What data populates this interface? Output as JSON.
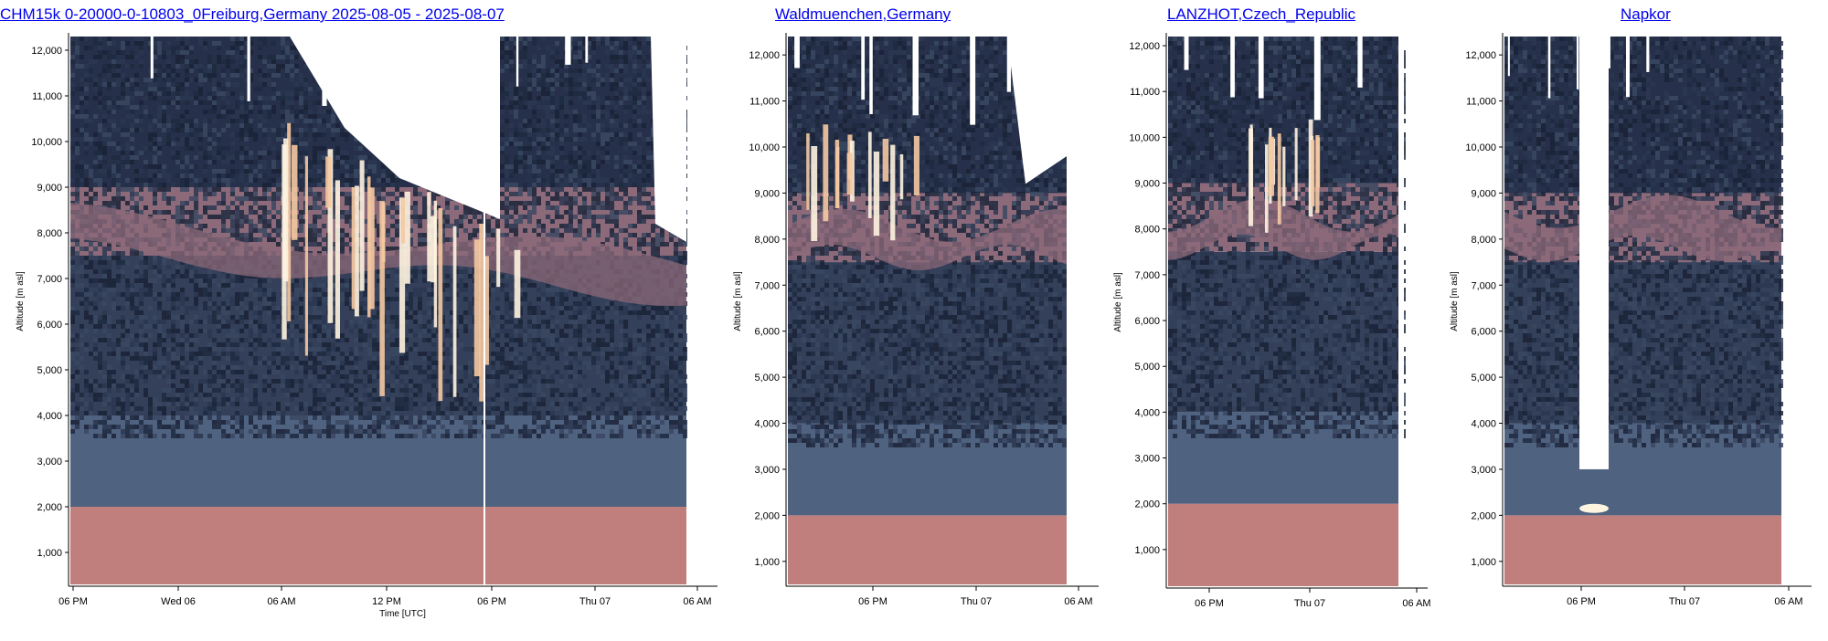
{
  "palette": {
    "noise": [
      "#1f2a40",
      "#2b3650",
      "#3a4862",
      "#1a2236"
    ],
    "aerosol": "#4f6280",
    "layer": "#8c6a7a",
    "boundary": "#c07f7c",
    "cloud": "#f4c9a2",
    "cloud_core": "#fff4e0",
    "axis": "#000000"
  },
  "chart_data": [
    {
      "type": "heatmap",
      "title": "CHM15k 0-20000-0-10803_0Freiburg,Germany 2025-08-05 - 2025-08-07",
      "xlabel": "Time [UTC]",
      "ylabel": "Altitude [m asl]",
      "ylim": [
        300,
        12300
      ],
      "yticks": [
        "1,000",
        "2,000",
        "3,000",
        "4,000",
        "5,000",
        "6,000",
        "7,000",
        "8,000",
        "9,000",
        "10,000",
        "11,000",
        "12,000"
      ],
      "xticks": [
        "06 PM",
        "Wed 06",
        "06 AM",
        "12 PM",
        "06 PM",
        "Thu 07",
        "06 AM"
      ],
      "grid": false
    },
    {
      "type": "heatmap",
      "title": "Waldmuenchen,Germany",
      "xlabel": "",
      "ylabel": "Altitude [m asl]",
      "ylim": [
        500,
        12400
      ],
      "yticks": [
        "1,000",
        "2,000",
        "3,000",
        "4,000",
        "5,000",
        "6,000",
        "7,000",
        "8,000",
        "9,000",
        "10,000",
        "11,000",
        "12,000"
      ],
      "xticks": [
        "06 PM",
        "Thu 07",
        "06 AM"
      ],
      "grid": false
    },
    {
      "type": "heatmap",
      "title": "LANZHOT,Czech_Republic",
      "xlabel": "",
      "ylabel": "Altitude [m asl]",
      "ylim": [
        200,
        12200
      ],
      "yticks": [
        "1,000",
        "2,000",
        "3,000",
        "4,000",
        "5,000",
        "6,000",
        "7,000",
        "8,000",
        "9,000",
        "10,000",
        "11,000",
        "12,000"
      ],
      "xticks": [
        "06 PM",
        "Thu 07",
        "06 AM"
      ],
      "grid": false
    },
    {
      "type": "heatmap",
      "title": "Napkor",
      "xlabel": "",
      "ylabel": "Altitude [m asl]",
      "ylim": [
        500,
        12400
      ],
      "yticks": [
        "1,000",
        "2,000",
        "3,000",
        "4,000",
        "5,000",
        "6,000",
        "7,000",
        "8,000",
        "9,000",
        "10,000",
        "11,000",
        "12,000"
      ],
      "xticks": [
        "06 PM",
        "Thu 07",
        "06 AM"
      ],
      "grid": false
    }
  ]
}
